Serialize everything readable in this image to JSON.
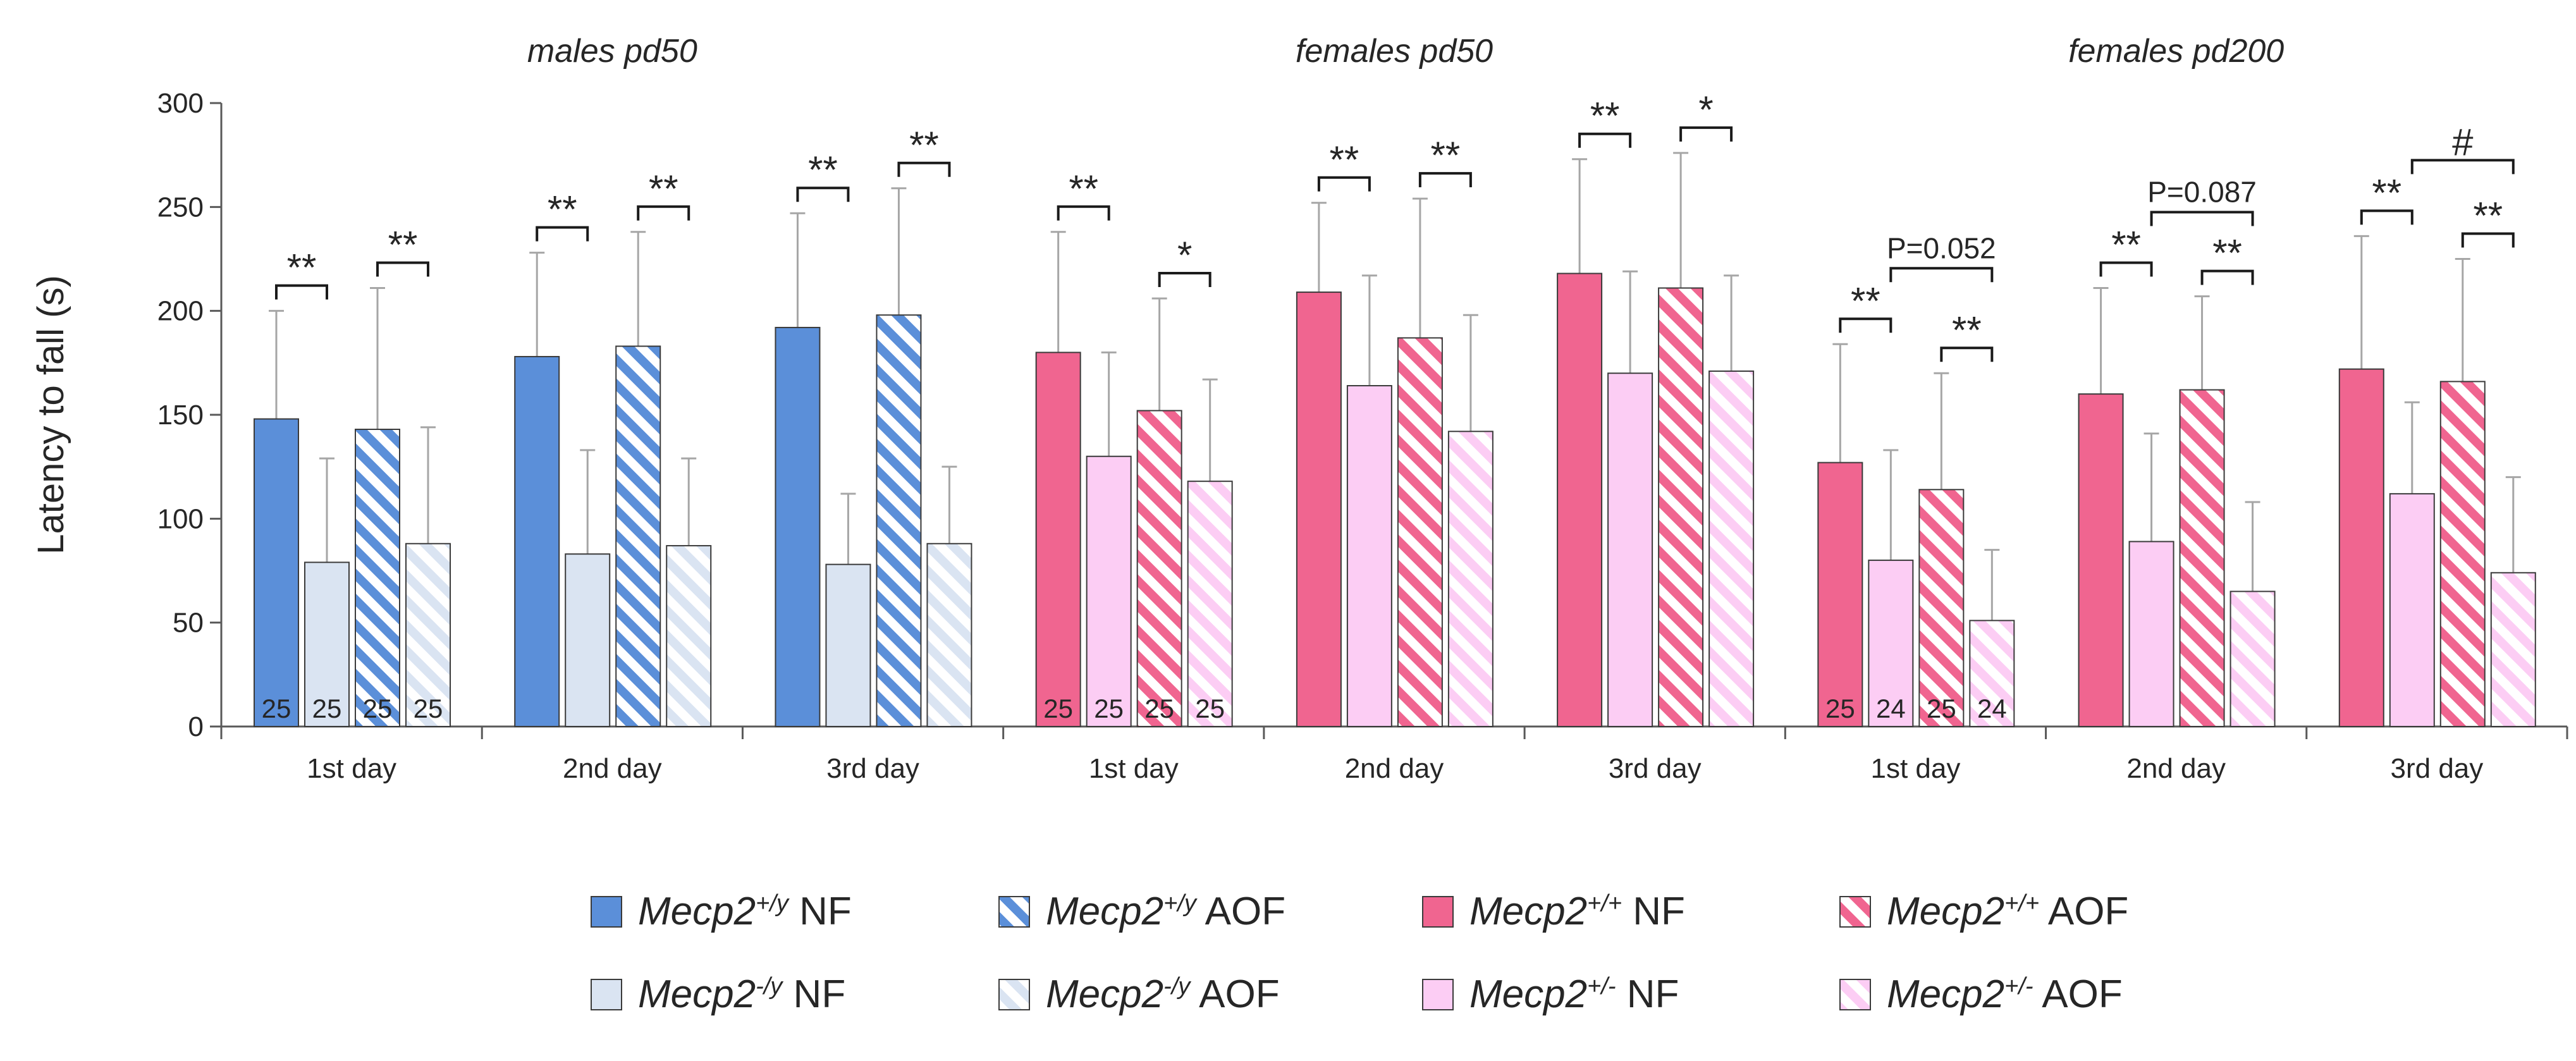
{
  "chart_data": {
    "type": "bar",
    "ylabel": "Latency to fall (s)",
    "ylim": [
      0,
      300
    ],
    "yticks": [
      "0",
      "50",
      "100",
      "150",
      "200",
      "250",
      "300"
    ],
    "groups": [
      {
        "title": "males pd50"
      },
      {
        "title": "females pd50"
      },
      {
        "title": "females pd200"
      }
    ],
    "colors": {
      "male_wt": "#5b8fd9",
      "male_ko": "#dae4f2",
      "female_wt": "#f06590",
      "female_het": "#fccdf4",
      "axis": "#595959",
      "text": "#262626"
    },
    "series": [
      {
        "key": "male_wt",
        "sex": "male",
        "fill": "solid",
        "legend": {
          "gene": "Mecp2",
          "sup": "+/y",
          "suffix": " NF"
        }
      },
      {
        "key": "male_ko",
        "sex": "male",
        "fill": "solid",
        "legend": {
          "gene": "Mecp2",
          "sup": "-/y",
          "suffix": " NF"
        }
      },
      {
        "key": "male_wt_aof",
        "sex": "male",
        "fill": "stripe",
        "legend": {
          "gene": "Mecp2",
          "sup": "+/y",
          "suffix": " AOF"
        }
      },
      {
        "key": "male_ko_aof",
        "sex": "male",
        "fill": "stripe",
        "legend": {
          "gene": "Mecp2",
          "sup": "-/y",
          "suffix": " AOF"
        }
      },
      {
        "key": "female_wt",
        "sex": "female",
        "fill": "solid",
        "legend": {
          "gene": "Mecp2",
          "sup": "+/+",
          "suffix": " NF"
        }
      },
      {
        "key": "female_het",
        "sex": "female",
        "fill": "solid",
        "legend": {
          "gene": "Mecp2",
          "sup": "+/-",
          "suffix": " NF"
        }
      },
      {
        "key": "female_wt_aof",
        "sex": "female",
        "fill": "stripe",
        "legend": {
          "gene": "Mecp2",
          "sup": "+/+",
          "suffix": " AOF"
        }
      },
      {
        "key": "female_het_aof",
        "sex": "female",
        "fill": "stripe",
        "legend": {
          "gene": "Mecp2",
          "sup": "+/-",
          "suffix": " AOF"
        }
      }
    ],
    "clusters": [
      {
        "group": 0,
        "label": "1st day",
        "bars": [
          {
            "value": 148,
            "err": 52
          },
          {
            "value": 79,
            "err": 50
          },
          {
            "value": 143,
            "err": 68
          },
          {
            "value": 88,
            "err": 56
          }
        ],
        "n": [
          "25",
          "25",
          "25",
          "25"
        ],
        "sig": [
          {
            "from": 0,
            "to": 1,
            "label": "**"
          },
          {
            "from": 2,
            "to": 3,
            "label": "**"
          }
        ]
      },
      {
        "group": 0,
        "label": "2nd day",
        "bars": [
          {
            "value": 178,
            "err": 50
          },
          {
            "value": 83,
            "err": 50
          },
          {
            "value": 183,
            "err": 55
          },
          {
            "value": 87,
            "err": 42
          }
        ],
        "sig": [
          {
            "from": 0,
            "to": 1,
            "label": "**"
          },
          {
            "from": 2,
            "to": 3,
            "label": "**"
          }
        ]
      },
      {
        "group": 0,
        "label": "3rd day",
        "bars": [
          {
            "value": 192,
            "err": 55
          },
          {
            "value": 78,
            "err": 34
          },
          {
            "value": 198,
            "err": 61
          },
          {
            "value": 88,
            "err": 37
          }
        ],
        "sig": [
          {
            "from": 0,
            "to": 1,
            "label": "**"
          },
          {
            "from": 2,
            "to": 3,
            "label": "**"
          }
        ]
      },
      {
        "group": 1,
        "label": "1st day",
        "bars": [
          {
            "value": 180,
            "err": 58
          },
          {
            "value": 130,
            "err": 50
          },
          {
            "value": 152,
            "err": 54
          },
          {
            "value": 118,
            "err": 49
          }
        ],
        "n": [
          "25",
          "25",
          "25",
          "25"
        ],
        "sig": [
          {
            "from": 0,
            "to": 1,
            "label": "**"
          },
          {
            "from": 2,
            "to": 3,
            "label": "*"
          }
        ]
      },
      {
        "group": 1,
        "label": "2nd day",
        "bars": [
          {
            "value": 209,
            "err": 43
          },
          {
            "value": 164,
            "err": 53
          },
          {
            "value": 187,
            "err": 67
          },
          {
            "value": 142,
            "err": 56
          }
        ],
        "sig": [
          {
            "from": 0,
            "to": 1,
            "label": "**"
          },
          {
            "from": 2,
            "to": 3,
            "label": "**"
          }
        ]
      },
      {
        "group": 1,
        "label": "3rd day",
        "bars": [
          {
            "value": 218,
            "err": 55
          },
          {
            "value": 170,
            "err": 49
          },
          {
            "value": 211,
            "err": 65
          },
          {
            "value": 171,
            "err": 46
          }
        ],
        "sig": [
          {
            "from": 0,
            "to": 1,
            "label": "**"
          },
          {
            "from": 2,
            "to": 3,
            "label": "*"
          }
        ]
      },
      {
        "group": 2,
        "label": "1st day",
        "bars": [
          {
            "value": 127,
            "err": 57
          },
          {
            "value": 80,
            "err": 53
          },
          {
            "value": 114,
            "err": 56
          },
          {
            "value": 51,
            "err": 34
          }
        ],
        "n": [
          "25",
          "24",
          "25",
          "24"
        ],
        "sig": [
          {
            "from": 0,
            "to": 1,
            "label": "**"
          },
          {
            "from": 2,
            "to": 3,
            "label": "**"
          },
          {
            "from": 1,
            "to": 3,
            "label": "P=0.052",
            "tier": 1
          }
        ]
      },
      {
        "group": 2,
        "label": "2nd day",
        "bars": [
          {
            "value": 160,
            "err": 51
          },
          {
            "value": 89,
            "err": 52
          },
          {
            "value": 162,
            "err": 45
          },
          {
            "value": 65,
            "err": 43
          }
        ],
        "sig": [
          {
            "from": 0,
            "to": 1,
            "label": "**"
          },
          {
            "from": 2,
            "to": 3,
            "label": "**"
          },
          {
            "from": 1,
            "to": 3,
            "label": "P=0.087",
            "tier": 1
          }
        ]
      },
      {
        "group": 2,
        "label": "3rd day",
        "bars": [
          {
            "value": 172,
            "err": 64
          },
          {
            "value": 112,
            "err": 44
          },
          {
            "value": 166,
            "err": 59
          },
          {
            "value": 74,
            "err": 46
          }
        ],
        "sig": [
          {
            "from": 0,
            "to": 1,
            "label": "**"
          },
          {
            "from": 2,
            "to": 3,
            "label": "**"
          },
          {
            "from": 1,
            "to": 3,
            "label": "#",
            "tier": 1
          }
        ]
      }
    ]
  }
}
